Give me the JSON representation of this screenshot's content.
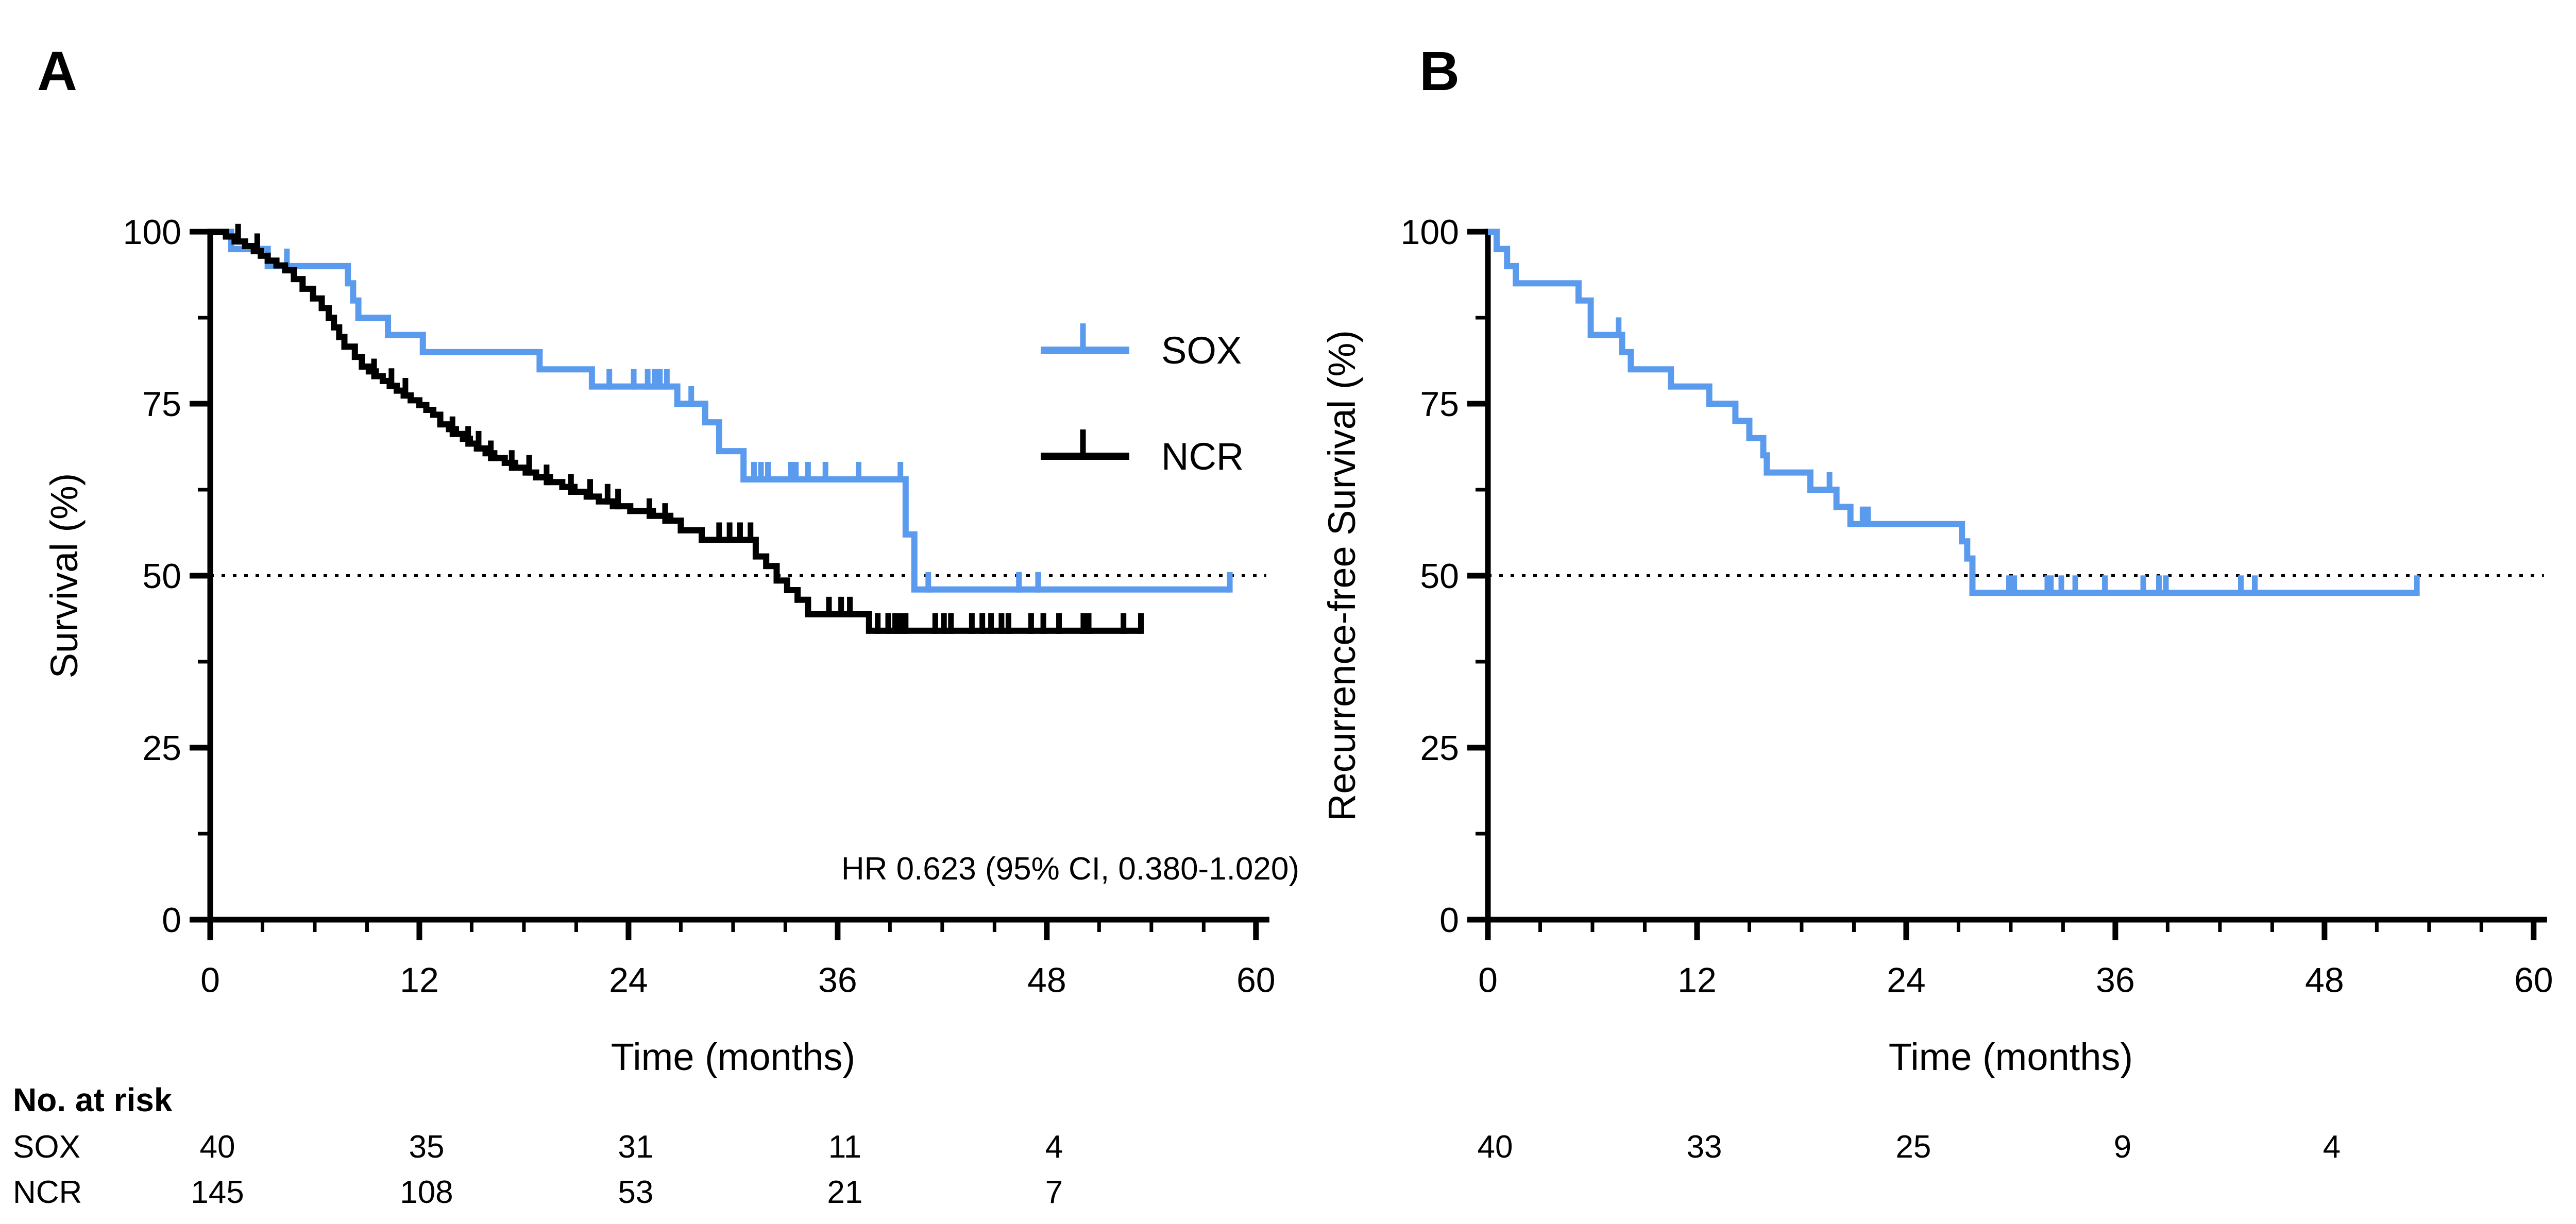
{
  "figure": {
    "background": "#ffffff",
    "accent_blue": "#5B9BEE",
    "curve_black": "#000000",
    "panel_letters": [
      "A",
      "B"
    ]
  },
  "chart_data": [
    {
      "type": "line",
      "subtype": "kaplan-meier-step",
      "panel_letter": "A",
      "ylabel": "Survival (%)",
      "xlabel": "Time (months)",
      "xlim": [
        0,
        60
      ],
      "ylim": [
        0,
        100
      ],
      "xticks": [
        0,
        12,
        24,
        36,
        48,
        60
      ],
      "yticks": [
        0,
        25,
        50,
        75,
        100
      ],
      "minor_xtick_step": 3,
      "minor_ytick_step": 12.5,
      "grid": false,
      "reference_line_y": 50,
      "reference_line_style": "dotted",
      "annotation": "HR 0.623  (95% CI, 0.380-1.020)",
      "legend_position": "upper right",
      "legend": [
        "SOX",
        "NCR"
      ],
      "series": [
        {
          "name": "SOX",
          "color": "#5B9BEE",
          "steps": [
            [
              0,
              100
            ],
            [
              1.2,
              97.5
            ],
            [
              3.3,
              95
            ],
            [
              7.9,
              92.5
            ],
            [
              8.2,
              90
            ],
            [
              8.5,
              87.5
            ],
            [
              10.2,
              85
            ],
            [
              12.2,
              82.5
            ],
            [
              18.9,
              80
            ],
            [
              21.9,
              77.5
            ],
            [
              26.8,
              75
            ],
            [
              28.4,
              72.3
            ],
            [
              29.2,
              68.1
            ],
            [
              30.6,
              64
            ],
            [
              39.9,
              56
            ],
            [
              40.4,
              48
            ]
          ],
          "end_time": 58.5,
          "censors": [
            [
              4.4,
              95
            ],
            [
              22.9,
              77.5
            ],
            [
              24.3,
              77.5
            ],
            [
              25.1,
              77.5
            ],
            [
              25.5,
              77.5
            ],
            [
              25.8,
              77.5
            ],
            [
              26.2,
              77.5
            ],
            [
              27.6,
              75
            ],
            [
              31.2,
              64
            ],
            [
              31.6,
              64
            ],
            [
              32.0,
              64
            ],
            [
              33.3,
              64
            ],
            [
              33.6,
              64
            ],
            [
              34.3,
              64
            ],
            [
              35.3,
              64
            ],
            [
              37.2,
              64
            ],
            [
              39.6,
              64
            ],
            [
              41.2,
              48
            ],
            [
              46.4,
              48
            ],
            [
              47.5,
              48
            ],
            [
              58.5,
              48
            ]
          ]
        },
        {
          "name": "NCR",
          "color": "#000000",
          "steps": [
            [
              0,
              100
            ],
            [
              0.9,
              99.3
            ],
            [
              1.4,
              98.6
            ],
            [
              2.0,
              97.9
            ],
            [
              2.5,
              97.2
            ],
            [
              2.9,
              96.5
            ],
            [
              3.3,
              95.8
            ],
            [
              3.8,
              95.1
            ],
            [
              4.3,
              94.4
            ],
            [
              4.8,
              93.1
            ],
            [
              5.3,
              91.7
            ],
            [
              5.9,
              90.3
            ],
            [
              6.4,
              88.9
            ],
            [
              6.8,
              87.5
            ],
            [
              7.1,
              86.1
            ],
            [
              7.4,
              84.7
            ],
            [
              7.7,
              83.3
            ],
            [
              8.3,
              81.8
            ],
            [
              8.7,
              80.4
            ],
            [
              9.1,
              79.7
            ],
            [
              9.5,
              79.0
            ],
            [
              9.9,
              78.3
            ],
            [
              10.3,
              77.6
            ],
            [
              10.7,
              76.9
            ],
            [
              11.1,
              76.2
            ],
            [
              11.5,
              75.5
            ],
            [
              12.0,
              74.8
            ],
            [
              12.4,
              74.1
            ],
            [
              12.8,
              73.4
            ],
            [
              13.2,
              72.0
            ],
            [
              13.7,
              71.3
            ],
            [
              14.1,
              70.6
            ],
            [
              14.5,
              69.9
            ],
            [
              14.9,
              69.2
            ],
            [
              15.3,
              68.5
            ],
            [
              15.8,
              67.8
            ],
            [
              16.3,
              67.1
            ],
            [
              16.9,
              66.4
            ],
            [
              17.5,
              65.7
            ],
            [
              18.1,
              65.0
            ],
            [
              18.7,
              64.3
            ],
            [
              19.5,
              63.6
            ],
            [
              20.2,
              62.9
            ],
            [
              20.9,
              62.2
            ],
            [
              21.6,
              61.5
            ],
            [
              22.3,
              60.8
            ],
            [
              23.1,
              60.1
            ],
            [
              24.1,
              59.4
            ],
            [
              25.4,
              58.7
            ],
            [
              26.4,
              58.0
            ],
            [
              27.0,
              56.6
            ],
            [
              28.2,
              55.2
            ],
            [
              31.3,
              52.8
            ],
            [
              31.9,
              51.4
            ],
            [
              32.5,
              49.3
            ],
            [
              33.1,
              47.9
            ],
            [
              33.7,
              46.5
            ],
            [
              34.3,
              44.4
            ],
            [
              37.8,
              42.0
            ]
          ],
          "end_time": 53.4,
          "censors": [
            [
              1.6,
              98.6
            ],
            [
              2.7,
              97.2
            ],
            [
              9.4,
              79.0
            ],
            [
              10.4,
              77.6
            ],
            [
              11.2,
              76.2
            ],
            [
              13.9,
              70.6
            ],
            [
              14.8,
              69.2
            ],
            [
              15.4,
              68.5
            ],
            [
              16.1,
              67.1
            ],
            [
              17.3,
              65.7
            ],
            [
              18.3,
              65.0
            ],
            [
              19.3,
              63.6
            ],
            [
              20.7,
              62.2
            ],
            [
              21.8,
              61.5
            ],
            [
              22.8,
              60.8
            ],
            [
              23.4,
              60.1
            ],
            [
              25.2,
              58.7
            ],
            [
              26.1,
              58.0
            ],
            [
              29.2,
              55.2
            ],
            [
              29.8,
              55.2
            ],
            [
              30.4,
              55.2
            ],
            [
              31.0,
              55.2
            ],
            [
              35.5,
              44.4
            ],
            [
              36.2,
              44.4
            ],
            [
              36.7,
              44.4
            ],
            [
              38.3,
              42.0
            ],
            [
              38.9,
              42.0
            ],
            [
              39.3,
              42.0
            ],
            [
              39.6,
              42.0
            ],
            [
              39.9,
              42.0
            ],
            [
              41.6,
              42.0
            ],
            [
              42.1,
              42.0
            ],
            [
              42.5,
              42.0
            ],
            [
              43.7,
              42.0
            ],
            [
              44.3,
              42.0
            ],
            [
              44.8,
              42.0
            ],
            [
              45.4,
              42.0
            ],
            [
              45.8,
              42.0
            ],
            [
              47.1,
              42.0
            ],
            [
              47.8,
              42.0
            ],
            [
              48.7,
              42.0
            ],
            [
              50.1,
              42.0
            ],
            [
              50.4,
              42.0
            ],
            [
              52.4,
              42.0
            ],
            [
              53.4,
              42.0
            ]
          ]
        }
      ],
      "risk_table": {
        "header": "No. at risk",
        "times": [
          0,
          12,
          24,
          36,
          48
        ],
        "rows": [
          {
            "label": "SOX",
            "values": [
              "40",
              "35",
              "31",
              "11",
              "4"
            ]
          },
          {
            "label": "NCR",
            "values": [
              "145",
              "108",
              "53",
              "21",
              "7"
            ]
          }
        ]
      }
    },
    {
      "type": "line",
      "subtype": "kaplan-meier-step",
      "panel_letter": "B",
      "ylabel": "Recurrence-free Survival (%)",
      "xlabel": "Time (months)",
      "xlim": [
        0,
        60
      ],
      "ylim": [
        0,
        100
      ],
      "xticks": [
        0,
        12,
        24,
        36,
        48,
        60
      ],
      "yticks": [
        0,
        25,
        50,
        75,
        100
      ],
      "minor_xtick_step": 3,
      "minor_ytick_step": 12.5,
      "grid": false,
      "reference_line_y": 50,
      "reference_line_style": "dotted",
      "annotation": "",
      "legend": [],
      "series": [
        {
          "name": "SOX",
          "color": "#5B9BEE",
          "steps": [
            [
              0,
              100
            ],
            [
              0.5,
              97.5
            ],
            [
              1.1,
              95
            ],
            [
              1.6,
              92.5
            ],
            [
              5.2,
              90
            ],
            [
              5.9,
              85
            ],
            [
              7.7,
              82.5
            ],
            [
              8.2,
              80
            ],
            [
              10.5,
              77.5
            ],
            [
              12.7,
              75
            ],
            [
              14.2,
              72.5
            ],
            [
              15.0,
              70
            ],
            [
              15.8,
              67.5
            ],
            [
              16.0,
              65
            ],
            [
              18.5,
              62.5
            ],
            [
              20.0,
              60
            ],
            [
              20.8,
              57.5
            ],
            [
              27.2,
              55
            ],
            [
              27.5,
              52.5
            ],
            [
              27.8,
              47.5
            ]
          ],
          "end_time": 53.3,
          "censors": [
            [
              7.5,
              85
            ],
            [
              19.6,
              62.5
            ],
            [
              21.5,
              57.5
            ],
            [
              21.8,
              57.5
            ],
            [
              29.9,
              47.5
            ],
            [
              30.2,
              47.5
            ],
            [
              32.1,
              47.5
            ],
            [
              32.3,
              47.5
            ],
            [
              32.9,
              47.5
            ],
            [
              33.7,
              47.5
            ],
            [
              35.4,
              47.5
            ],
            [
              37.6,
              47.5
            ],
            [
              38.5,
              47.5
            ],
            [
              38.9,
              47.5
            ],
            [
              43.2,
              47.5
            ],
            [
              44.0,
              47.5
            ],
            [
              53.3,
              47.5
            ]
          ]
        }
      ],
      "risk_table": {
        "header": "",
        "times": [
          0,
          12,
          24,
          36,
          48
        ],
        "rows": [
          {
            "label": "",
            "values": [
              "40",
              "33",
              "25",
              "9",
              "4"
            ]
          }
        ]
      }
    }
  ]
}
